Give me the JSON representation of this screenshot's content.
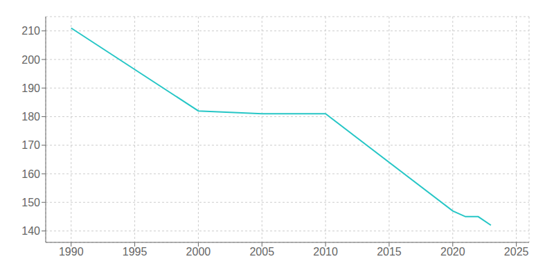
{
  "chart_data": {
    "type": "line",
    "x": [
      1990,
      2000,
      2005,
      2010,
      2020,
      2021,
      2022,
      2023
    ],
    "values": [
      211,
      182,
      181,
      181,
      147,
      145,
      145,
      142
    ],
    "color": "#26c6c6",
    "xlim": [
      1988,
      2026
    ],
    "ylim": [
      136,
      215
    ],
    "xticks": [
      1990,
      1995,
      2000,
      2005,
      2010,
      2015,
      2020,
      2025
    ],
    "yticks": [
      140,
      150,
      160,
      170,
      180,
      190,
      200,
      210
    ],
    "grid": true
  }
}
